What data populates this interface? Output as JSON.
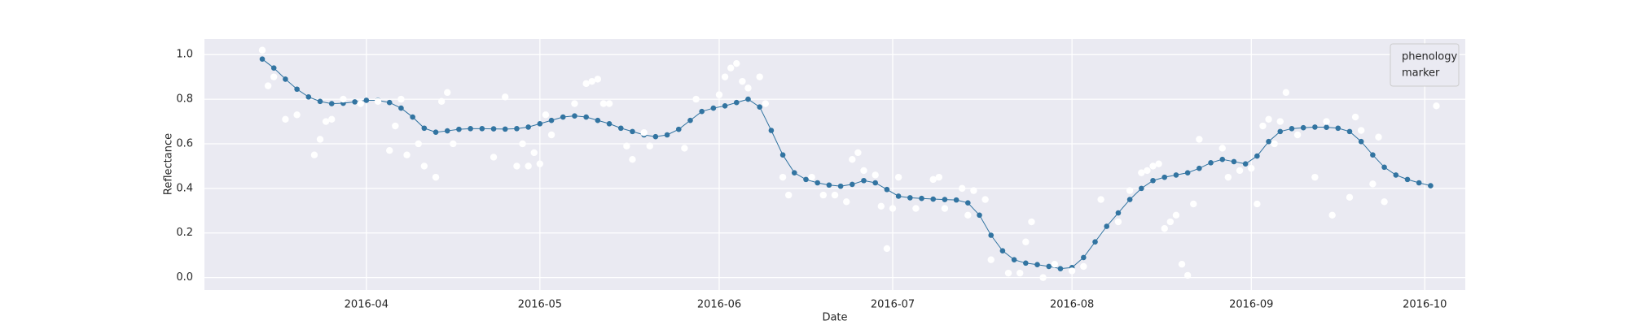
{
  "chart_data": {
    "type": "line",
    "xlabel": "Date",
    "ylabel": "Reflectance",
    "xlim": [
      "2016-03-04",
      "2016-10-08"
    ],
    "xticks": [
      {
        "value": "2016-04-01",
        "label": "2016-04"
      },
      {
        "value": "2016-05-01",
        "label": "2016-05"
      },
      {
        "value": "2016-06-01",
        "label": "2016-06"
      },
      {
        "value": "2016-07-01",
        "label": "2016-07"
      },
      {
        "value": "2016-08-01",
        "label": "2016-08"
      },
      {
        "value": "2016-09-01",
        "label": "2016-09"
      },
      {
        "value": "2016-10-01",
        "label": "2016-10"
      }
    ],
    "ylim": [
      -0.056,
      1.07
    ],
    "yticks": [
      {
        "value": 0,
        "label": "0.0"
      },
      0.2,
      0.4,
      0.6,
      0.8,
      {
        "value": 1,
        "label": "1.0"
      }
    ],
    "grid": true,
    "legend": "upper right",
    "series": [
      {
        "name": "phenology",
        "color": "#3274a1",
        "x": [
          "2016-03-14",
          "2016-03-16",
          "2016-03-18",
          "2016-03-20",
          "2016-03-22",
          "2016-03-24",
          "2016-03-26",
          "2016-03-28",
          "2016-03-30",
          "2016-04-01",
          "2016-04-03",
          "2016-04-05",
          "2016-04-07",
          "2016-04-09",
          "2016-04-11",
          "2016-04-13",
          "2016-04-15",
          "2016-04-17",
          "2016-04-19",
          "2016-04-21",
          "2016-04-23",
          "2016-04-25",
          "2016-04-27",
          "2016-04-29",
          "2016-05-01",
          "2016-05-03",
          "2016-05-05",
          "2016-05-07",
          "2016-05-09",
          "2016-05-11",
          "2016-05-13",
          "2016-05-15",
          "2016-05-17",
          "2016-05-19",
          "2016-05-21",
          "2016-05-23",
          "2016-05-25",
          "2016-05-27",
          "2016-05-29",
          "2016-05-31",
          "2016-06-02",
          "2016-06-04",
          "2016-06-06",
          "2016-06-08",
          "2016-06-10",
          "2016-06-12",
          "2016-06-14",
          "2016-06-16",
          "2016-06-18",
          "2016-06-20",
          "2016-06-22",
          "2016-06-24",
          "2016-06-26",
          "2016-06-28",
          "2016-06-30",
          "2016-07-02",
          "2016-07-04",
          "2016-07-06",
          "2016-07-08",
          "2016-07-10",
          "2016-07-12",
          "2016-07-14",
          "2016-07-16",
          "2016-07-18",
          "2016-07-20",
          "2016-07-22",
          "2016-07-24",
          "2016-07-26",
          "2016-07-28",
          "2016-07-30",
          "2016-08-01",
          "2016-08-03",
          "2016-08-05",
          "2016-08-07",
          "2016-08-09",
          "2016-08-11",
          "2016-08-13",
          "2016-08-15",
          "2016-08-17",
          "2016-08-19",
          "2016-08-21",
          "2016-08-23",
          "2016-08-25",
          "2016-08-27",
          "2016-08-29",
          "2016-08-31",
          "2016-09-02",
          "2016-09-04",
          "2016-09-06",
          "2016-09-08",
          "2016-09-10",
          "2016-09-12",
          "2016-09-14",
          "2016-09-16",
          "2016-09-18",
          "2016-09-20",
          "2016-09-22",
          "2016-09-24",
          "2016-09-26",
          "2016-09-28",
          "2016-09-30",
          "2016-10-02"
        ],
        "values": [
          0.98,
          0.94,
          0.89,
          0.845,
          0.81,
          0.79,
          0.78,
          0.782,
          0.788,
          0.795,
          0.795,
          0.785,
          0.76,
          0.72,
          0.67,
          0.652,
          0.658,
          0.665,
          0.668,
          0.668,
          0.667,
          0.666,
          0.668,
          0.675,
          0.69,
          0.705,
          0.72,
          0.725,
          0.72,
          0.705,
          0.69,
          0.67,
          0.655,
          0.64,
          0.632,
          0.64,
          0.665,
          0.705,
          0.745,
          0.76,
          0.77,
          0.785,
          0.8,
          0.765,
          0.66,
          0.55,
          0.47,
          0.44,
          0.425,
          0.415,
          0.41,
          0.418,
          0.435,
          0.425,
          0.395,
          0.365,
          0.358,
          0.355,
          0.352,
          0.35,
          0.348,
          0.335,
          0.28,
          0.19,
          0.12,
          0.08,
          0.065,
          0.058,
          0.05,
          0.04,
          0.045,
          0.09,
          0.16,
          0.23,
          0.29,
          0.35,
          0.4,
          0.435,
          0.45,
          0.46,
          0.47,
          0.49,
          0.515,
          0.53,
          0.52,
          0.51,
          0.545,
          0.61,
          0.655,
          0.668,
          0.672,
          0.675,
          0.674,
          0.67,
          0.655,
          0.61,
          0.55,
          0.495,
          0.46,
          0.44,
          0.425,
          0.412
        ]
      },
      {
        "name": "marker",
        "color": "#ffffff",
        "x": [
          "2016-03-14",
          "2016-03-15",
          "2016-03-16",
          "2016-03-18",
          "2016-03-20",
          "2016-03-23",
          "2016-03-24",
          "2016-03-25",
          "2016-03-26",
          "2016-03-28",
          "2016-03-31",
          "2016-04-03",
          "2016-04-05",
          "2016-04-06",
          "2016-04-07",
          "2016-04-08",
          "2016-04-10",
          "2016-04-11",
          "2016-04-13",
          "2016-04-14",
          "2016-04-15",
          "2016-04-16",
          "2016-04-23",
          "2016-04-25",
          "2016-04-27",
          "2016-04-28",
          "2016-04-29",
          "2016-04-30",
          "2016-05-01",
          "2016-05-02",
          "2016-05-03",
          "2016-05-07",
          "2016-05-09",
          "2016-05-10",
          "2016-05-11",
          "2016-05-12",
          "2016-05-13",
          "2016-05-16",
          "2016-05-17",
          "2016-05-19",
          "2016-05-20",
          "2016-05-26",
          "2016-05-28",
          "2016-06-01",
          "2016-06-02",
          "2016-06-03",
          "2016-06-04",
          "2016-06-05",
          "2016-06-06",
          "2016-06-08",
          "2016-06-09",
          "2016-06-12",
          "2016-06-13",
          "2016-06-17",
          "2016-06-19",
          "2016-06-21",
          "2016-06-23",
          "2016-06-24",
          "2016-06-25",
          "2016-06-26",
          "2016-06-28",
          "2016-06-29",
          "2016-06-30",
          "2016-07-01",
          "2016-07-02",
          "2016-07-05",
          "2016-07-08",
          "2016-07-09",
          "2016-07-10",
          "2016-07-13",
          "2016-07-14",
          "2016-07-15",
          "2016-07-17",
          "2016-07-18",
          "2016-07-21",
          "2016-07-23",
          "2016-07-24",
          "2016-07-25",
          "2016-07-27",
          "2016-07-29",
          "2016-08-01",
          "2016-08-03",
          "2016-08-06",
          "2016-08-09",
          "2016-08-11",
          "2016-08-13",
          "2016-08-14",
          "2016-08-15",
          "2016-08-16",
          "2016-08-17",
          "2016-08-18",
          "2016-08-19",
          "2016-08-20",
          "2016-08-21",
          "2016-08-22",
          "2016-08-23",
          "2016-08-27",
          "2016-08-28",
          "2016-08-30",
          "2016-09-01",
          "2016-09-02",
          "2016-09-03",
          "2016-09-04",
          "2016-09-05",
          "2016-09-06",
          "2016-09-07",
          "2016-09-09",
          "2016-09-12",
          "2016-09-14",
          "2016-09-15",
          "2016-09-18",
          "2016-09-19",
          "2016-09-20",
          "2016-09-22",
          "2016-09-23",
          "2016-09-24",
          "2016-10-03"
        ],
        "values": [
          1.02,
          0.86,
          0.9,
          0.71,
          0.73,
          0.55,
          0.62,
          0.7,
          0.71,
          0.8,
          0.78,
          0.79,
          0.57,
          0.68,
          0.8,
          0.55,
          0.6,
          0.5,
          0.45,
          0.79,
          0.83,
          0.6,
          0.54,
          0.81,
          0.5,
          0.6,
          0.5,
          0.56,
          0.51,
          0.73,
          0.64,
          0.78,
          0.87,
          0.88,
          0.89,
          0.78,
          0.78,
          0.59,
          0.53,
          0.65,
          0.59,
          0.58,
          0.8,
          0.82,
          0.9,
          0.94,
          0.96,
          0.88,
          0.85,
          0.9,
          0.78,
          0.45,
          0.37,
          0.45,
          0.37,
          0.37,
          0.34,
          0.53,
          0.56,
          0.48,
          0.46,
          0.32,
          0.13,
          0.31,
          0.45,
          0.31,
          0.44,
          0.45,
          0.31,
          0.4,
          0.28,
          0.39,
          0.35,
          0.08,
          0.02,
          0.02,
          0.16,
          0.25,
          0.0,
          0.06,
          0.03,
          0.05,
          0.35,
          0.25,
          0.39,
          0.47,
          0.48,
          0.5,
          0.51,
          0.22,
          0.25,
          0.28,
          0.06,
          0.01,
          0.33,
          0.62,
          0.58,
          0.45,
          0.48,
          0.49,
          0.33,
          0.68,
          0.71,
          0.6,
          0.7,
          0.83,
          0.64,
          0.45,
          0.7,
          0.28,
          0.36,
          0.72,
          0.66,
          0.42,
          0.63,
          0.34,
          0.77
        ]
      }
    ]
  }
}
